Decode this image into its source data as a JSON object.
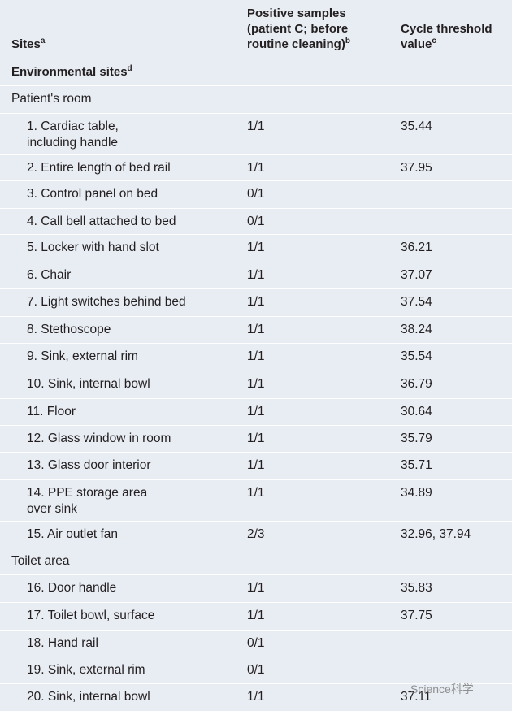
{
  "header": {
    "columns": [
      {
        "text": "Sites",
        "sup": "a"
      },
      {
        "text": "Positive samples (patient C; before routine cleaning)",
        "sup": "b"
      },
      {
        "text": "Cycle threshold value",
        "sup": "c"
      }
    ]
  },
  "table": {
    "rows": [
      {
        "section": "Environmental sites",
        "sup": "d"
      },
      {
        "group": "Patient's room"
      },
      {
        "site": "1. Cardiac table, including handle",
        "positive": "1/1",
        "ct": "35.44"
      },
      {
        "site": "2. Entire length of bed rail",
        "positive": "1/1",
        "ct": "37.95"
      },
      {
        "site": "3. Control panel on bed",
        "positive": "0/1"
      },
      {
        "site": "4. Call bell attached to bed",
        "positive": "0/1"
      },
      {
        "site": "5. Locker with hand slot",
        "positive": "1/1",
        "ct": "36.21"
      },
      {
        "site": "6. Chair",
        "positive": "1/1",
        "ct": "37.07"
      },
      {
        "site": "7. Light switches behind bed",
        "positive": "1/1",
        "ct": "37.54"
      },
      {
        "site": "8. Stethoscope",
        "positive": "1/1",
        "ct": "38.24"
      },
      {
        "site": "9. Sink, external rim",
        "positive": "1/1",
        "ct": "35.54"
      },
      {
        "site": "10. Sink, internal bowl",
        "positive": "1/1",
        "ct": "36.79"
      },
      {
        "site": "11. Floor",
        "positive": "1/1",
        "ct": "30.64"
      },
      {
        "site": "12. Glass window in room",
        "positive": "1/1",
        "ct": "35.79"
      },
      {
        "site": "13. Glass door interior",
        "positive": "1/1",
        "ct": "35.71"
      },
      {
        "site": "14. PPE storage area over sink",
        "positive": "1/1",
        "ct": "34.89"
      },
      {
        "site": "15. Air outlet fan",
        "positive": "2/3",
        "ct": "32.96, 37.94"
      },
      {
        "group": "Toilet area"
      },
      {
        "site": "16. Door handle",
        "positive": "1/1",
        "ct": "35.83"
      },
      {
        "site": "17. Toilet bowl, surface",
        "positive": "1/1",
        "ct": "37.75"
      },
      {
        "site": "18. Hand rail",
        "positive": "0/1"
      },
      {
        "site": "19. Sink, external rim",
        "positive": "0/1"
      },
      {
        "site": "20. Sink, internal bowl",
        "positive": "1/1",
        "ct": "37.11"
      }
    ]
  },
  "watermark": "Science科学"
}
